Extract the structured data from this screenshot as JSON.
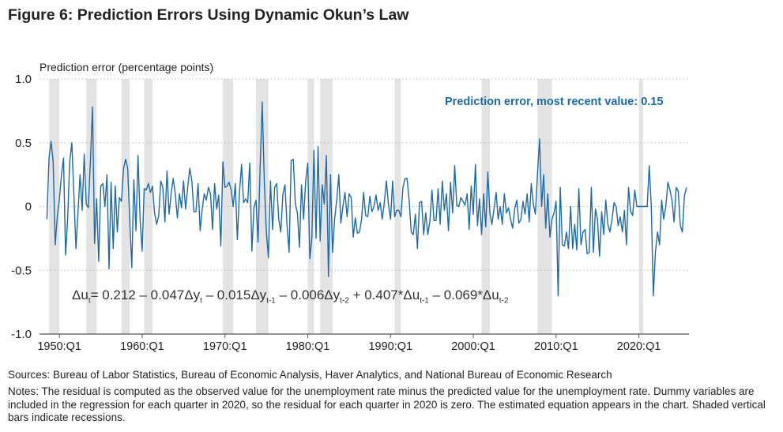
{
  "chart_data": {
    "type": "line",
    "title": "Figure 6: Prediction Errors Using Dynamic Okun’s Law",
    "ylabel": "Prediction error (percentage points)",
    "xlabel": "",
    "ylim": [
      -1.0,
      1.0
    ],
    "yticks": [
      {
        "value": 1.0,
        "label": "1.0"
      },
      {
        "value": 0.5,
        "label": "0.5"
      },
      {
        "value": 0,
        "label": "0"
      },
      {
        "value": -0.5,
        "label": "-0.5"
      },
      {
        "value": -1.0,
        "label": "-1.0"
      }
    ],
    "xticks": [
      {
        "year": 1950,
        "label": "1950:Q1"
      },
      {
        "year": 1960,
        "label": "1960:Q1"
      },
      {
        "year": 1970,
        "label": "1970:Q1"
      },
      {
        "year": 1980,
        "label": "1980:Q1"
      },
      {
        "year": 1990,
        "label": "1990:Q1"
      },
      {
        "year": 2000,
        "label": "2000:Q1"
      },
      {
        "year": 2010,
        "label": "2010:Q1"
      },
      {
        "year": 2020,
        "label": "2020:Q1"
      }
    ],
    "grid": "horizontal-dotted",
    "series_color": "#1f6aa5",
    "recession_color": "#e3e3e3",
    "start_quarter": "1948:Q3",
    "frequency": "quarterly",
    "values": [
      -0.1,
      0.38,
      0.51,
      0.35,
      -0.3,
      -0.08,
      0.05,
      0.25,
      0.38,
      -0.38,
      -0.1,
      0.35,
      0.5,
      0.1,
      -0.33,
      -0.05,
      0.25,
      -0.03,
      0.41,
      0.02,
      -0.01,
      0.35,
      0.78,
      -0.29,
      0.06,
      -0.43,
      0.16,
      0.18,
      0.0,
      0.25,
      -0.49,
      0.19,
      -0.33,
      0.16,
      -0.2,
      0.07,
      0.04,
      0.3,
      0.37,
      0.3,
      -0.1,
      -0.48,
      0.21,
      -0.19,
      0.4,
      -0.1,
      -0.35,
      0.14,
      0.13,
      0.18,
      0.11,
      0.16,
      -0.05,
      -0.14,
      -0.07,
      0.2,
      0.15,
      -0.12,
      0.28,
      -0.06,
      0.1,
      0.22,
      0.1,
      -0.09,
      0.1,
      -0.01,
      0.2,
      -0.02,
      0.15,
      0.3,
      0.2,
      -0.04,
      -0.04,
      0.18,
      -0.19,
      -0.02,
      0.1,
      0.05,
      0.15,
      0.1,
      -0.18,
      0.18,
      -0.02,
      0.09,
      -0.31,
      0.35,
      0.15,
      0.16,
      0.19,
      0.13,
      0.0,
      0.18,
      -0.26,
      0.1,
      0.33,
      0.03,
      0.06,
      0.03,
      0.34,
      -0.35,
      -0.01,
      0.05,
      -0.28,
      0.3,
      0.82,
      0.2,
      -0.2,
      -0.4,
      0.2,
      -0.18,
      0.15,
      0.18,
      -0.1,
      -0.2,
      0.1,
      0.17,
      -0.15,
      -0.36,
      0.36,
      0.37,
      0.02,
      -0.05,
      -0.32,
      0.17,
      -0.1,
      0.2,
      0.34,
      -0.41,
      -0.25,
      0.44,
      -0.25,
      0.47,
      -0.27,
      0.17,
      0.02,
      0.4,
      -0.55,
      0.25,
      -0.36,
      -0.1,
      0.05,
      0.25,
      -0.13,
      0.0,
      0.11,
      -0.08,
      0.1,
      0.07,
      -0.24,
      -0.09,
      -0.21,
      -0.2,
      -0.1,
      0.11,
      -0.07,
      -0.08,
      0.08,
      -0.04,
      0.0,
      0.09,
      -0.03,
      0.03,
      -0.1,
      0.03,
      0.2,
      0.02,
      -0.1,
      0.2,
      -0.08,
      -0.03,
      -0.03,
      -0.08,
      0.15,
      0.22,
      0.22,
      0.05,
      -0.2,
      -0.22,
      -0.06,
      -0.33,
      0.03,
      0.04,
      -0.22,
      -0.05,
      -0.22,
      -0.12,
      0.13,
      -0.11,
      -0.11,
      0.14,
      -0.14,
      0.2,
      -0.03,
      0.1,
      -0.19,
      0.19,
      -0.05,
      0.32,
      0.01,
      0.0,
      0.07,
      0.04,
      0.01,
      0.1,
      -0.18,
      0.16,
      -0.06,
      0.33,
      -0.15,
      0.06,
      -0.22,
      0.1,
      -0.16,
      0.27,
      -0.05,
      -0.14,
      -0.02,
      0.11,
      -0.1,
      0.0,
      -0.14,
      0.1,
      -0.05,
      -0.01,
      -0.1,
      -0.17,
      -0.02,
      0.05,
      -0.13,
      -0.1,
      0.04,
      -0.06,
      0.1,
      -0.12,
      0.18,
      0.02,
      -0.06,
      0.26,
      0.53,
      0.0,
      0.25,
      -0.17,
      0.1,
      -0.24,
      -0.1,
      -0.05,
      0.04,
      -0.7,
      0.15,
      -0.3,
      -0.31,
      -0.2,
      -0.33,
      0.0,
      -0.33,
      -0.14,
      -0.34,
      0.14,
      -0.3,
      -0.2,
      -0.18,
      -0.37,
      -0.36,
      0.15,
      -0.36,
      -0.02,
      -0.1,
      -0.39,
      -0.04,
      -0.22,
      0.05,
      -0.14,
      -0.2,
      -0.1,
      0.03,
      0.0,
      -0.15,
      -0.08,
      -0.2,
      -0.03,
      -0.3,
      0.15,
      -0.04,
      -0.07,
      0.13,
      0.0,
      0.0,
      0.0,
      0.0,
      0.0,
      0.0,
      0.32,
      0.0,
      -0.7,
      -0.35,
      -0.2,
      -0.3,
      0.05,
      -0.1,
      0.0,
      0.19,
      0.13,
      0.05,
      -0.12,
      0.15,
      0.12,
      -0.15,
      -0.2,
      0.08,
      0.15
    ],
    "recessions": [
      [
        "1948:Q4",
        "1949:Q4"
      ],
      [
        "1953:Q2",
        "1954:Q2"
      ],
      [
        "1957:Q3",
        "1958:Q2"
      ],
      [
        "1960:Q2",
        "1961:Q1"
      ],
      [
        "1969:Q4",
        "1970:Q4"
      ],
      [
        "1973:Q4",
        "1975:Q1"
      ],
      [
        "1980:Q1",
        "1980:Q3"
      ],
      [
        "1981:Q3",
        "1982:Q4"
      ],
      [
        "1990:Q3",
        "1991:Q1"
      ],
      [
        "2001:Q1",
        "2001:Q4"
      ],
      [
        "2007:Q4",
        "2009:Q2"
      ],
      [
        "2020:Q1",
        "2020:Q2"
      ]
    ],
    "annotation": "Prediction error, most recent value: 0.15",
    "equation": [
      {
        "t": "Δu",
        "sub": "t"
      },
      {
        "t": "= 0.212 – 0.047Δy",
        "sub": "t"
      },
      {
        "t": " – 0.015Δy",
        "sub": "t-1"
      },
      {
        "t": " – 0.006Δy",
        "sub": "t-2"
      },
      {
        "t": " + 0.407*Δu",
        "sub": "t-1"
      },
      {
        "t": " – 0.069*Δu",
        "sub": "t-2"
      }
    ]
  },
  "footer": {
    "sources": "Sources: Bureau of Labor Statistics, Bureau of Economic Analysis, Haver Analytics, and National Bureau of Economic Research",
    "notes": "Notes: The residual is computed as the observed value for the unemployment rate minus the predicted value for the unemployment rate. Dummy variables are included in the regression for each quarter in 2020, so the residual for each quarter in 2020 is zero. The estimated equation appears in the chart. Shaded vertical bars indicate recessions."
  }
}
